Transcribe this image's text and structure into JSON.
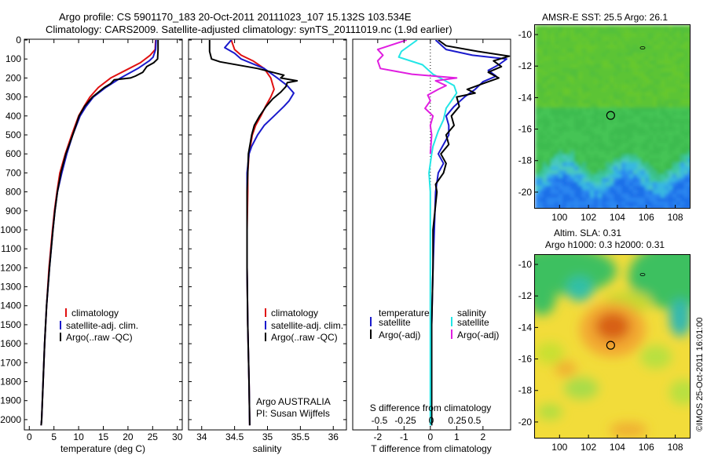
{
  "header": {
    "line1": "Argo profile: CS 5901170_183 20-Oct-2011 20111023_107 15.132S 103.534E",
    "line2": "Climatology: CARS2009. Satellite-adjusted climatology: synTS_20111019.nc (1.9d earlier)"
  },
  "colors": {
    "climatology": "#e01010",
    "satellite": "#1a1acc",
    "argo": "#000000",
    "satellite_salinity": "#22e6e6",
    "argo_salinity": "#e01ee0"
  },
  "chart_data": [
    {
      "type": "line",
      "panel": "temperature",
      "xlabel": "temperature (deg C)",
      "ylabel": "",
      "xlim": [
        -1,
        31
      ],
      "ylim": [
        2050,
        0
      ],
      "xticks": [
        0,
        5,
        10,
        15,
        20,
        25,
        30
      ],
      "yticks": [
        0,
        100,
        200,
        300,
        400,
        500,
        600,
        700,
        800,
        900,
        1000,
        1100,
        1200,
        1300,
        1400,
        1500,
        1600,
        1700,
        1800,
        1900,
        2000
      ],
      "legend": [
        "climatology",
        "satellite-adj. clim.",
        "Argo(..raw -QC)"
      ],
      "series": [
        {
          "name": "climatology",
          "color": "climatology",
          "y": [
            0,
            50,
            80,
            120,
            160,
            200,
            250,
            300,
            350,
            400,
            500,
            600,
            700,
            800,
            900,
            1000,
            1200,
            1400,
            1600,
            1800,
            2000,
            2030
          ],
          "x": [
            25.6,
            25.5,
            24.5,
            22.5,
            19.5,
            16.5,
            14.0,
            12.3,
            11.1,
            10.0,
            8.6,
            7.3,
            6.2,
            5.6,
            5.1,
            4.7,
            4.0,
            3.5,
            3.1,
            2.8,
            2.5,
            2.4
          ]
        },
        {
          "name": "satellite-adj. clim.",
          "color": "satellite",
          "y": [
            0,
            50,
            90,
            110,
            150,
            200,
            250,
            300,
            350,
            400,
            500,
            600,
            700,
            800,
            900,
            1000,
            1200,
            1400,
            1600,
            1800,
            2000,
            2030
          ],
          "x": [
            25.7,
            25.6,
            25.1,
            24.3,
            22.0,
            18.5,
            15.5,
            13.0,
            11.5,
            10.3,
            8.8,
            7.6,
            6.6,
            5.7,
            5.2,
            4.8,
            4.1,
            3.5,
            3.1,
            2.8,
            2.5,
            2.4
          ]
        },
        {
          "name": "Argo(..raw -QC)",
          "color": "argo",
          "y": [
            0,
            50,
            100,
            120,
            140,
            170,
            190,
            200,
            210,
            230,
            250,
            300,
            350,
            400,
            500,
            600,
            700,
            800,
            900,
            1000,
            1200,
            1400,
            1600,
            1800,
            2000,
            2030
          ],
          "x": [
            26.1,
            26.1,
            26.0,
            25.2,
            23.8,
            23.0,
            21.5,
            20.5,
            17.2,
            16.5,
            15.2,
            12.8,
            11.2,
            10.1,
            8.8,
            7.4,
            6.4,
            5.7,
            5.2,
            4.8,
            4.1,
            3.5,
            3.1,
            2.8,
            2.5,
            2.4
          ]
        }
      ]
    },
    {
      "type": "line",
      "panel": "salinity",
      "xlabel": "salinity",
      "ylabel": "",
      "xlim": [
        33.8,
        36.2
      ],
      "ylim": [
        2050,
        0
      ],
      "xticks": [
        34,
        34.5,
        35,
        35.5,
        36
      ],
      "yticks": [
        0,
        100,
        200,
        300,
        400,
        500,
        600,
        700,
        800,
        900,
        1000,
        1100,
        1200,
        1300,
        1400,
        1500,
        1600,
        1700,
        1800,
        1900,
        2000
      ],
      "legend": [
        "climatology",
        "satellite-adj. clim.",
        "Argo(..raw -QC)"
      ],
      "annotation": [
        "Argo AUSTRALIA",
        "PI: Susan Wijffels"
      ],
      "series": [
        {
          "name": "climatology",
          "color": "climatology",
          "y": [
            0,
            50,
            80,
            110,
            150,
            200,
            260,
            300,
            350,
            400,
            450,
            500,
            560,
            600,
            700,
            800,
            1000,
            1200,
            1500,
            1800,
            2030
          ],
          "x": [
            34.45,
            34.5,
            34.6,
            34.78,
            34.95,
            35.05,
            35.1,
            35.05,
            34.97,
            34.9,
            34.82,
            34.77,
            34.74,
            34.72,
            34.7,
            34.7,
            34.69,
            34.69,
            34.7,
            34.72,
            34.73
          ]
        },
        {
          "name": "satellite-adj. clim.",
          "color": "satellite",
          "y": [
            0,
            40,
            70,
            100,
            150,
            200,
            240,
            280,
            320,
            350,
            400,
            450,
            500,
            560,
            600,
            700,
            800,
            1000,
            1200,
            1500,
            1800,
            2030
          ],
          "x": [
            34.45,
            34.35,
            34.5,
            34.6,
            34.95,
            35.15,
            35.3,
            35.4,
            35.33,
            35.25,
            35.1,
            34.95,
            34.85,
            34.76,
            34.72,
            34.69,
            34.69,
            34.69,
            34.69,
            34.7,
            34.72,
            34.73
          ]
        },
        {
          "name": "Argo(..raw -QC)",
          "color": "argo",
          "y": [
            0,
            60,
            100,
            115,
            150,
            185,
            200,
            215,
            225,
            245,
            275,
            310,
            350,
            400,
            450,
            500,
            560,
            600,
            700,
            800,
            1000,
            1200,
            1500,
            1800,
            2030
          ],
          "x": [
            34.12,
            34.12,
            34.15,
            34.28,
            34.85,
            35.25,
            35.2,
            35.45,
            35.3,
            35.28,
            35.2,
            35.08,
            34.98,
            34.88,
            34.8,
            34.76,
            34.73,
            34.71,
            34.7,
            34.69,
            34.69,
            34.69,
            34.7,
            34.72,
            34.73
          ]
        }
      ]
    },
    {
      "type": "line",
      "panel": "difference",
      "xlabel": "T difference from climatology",
      "xlabel_top": "S difference from climatology",
      "ylabel": "",
      "xlim": [
        -2.95,
        3.05
      ],
      "ylim": [
        2050,
        0
      ],
      "xticks": [
        -2,
        -1,
        0,
        1,
        2
      ],
      "xticks_s": [
        "-0.5",
        "-0.25",
        "0",
        "0.25",
        "0.5"
      ],
      "yticks": [
        0,
        100,
        200,
        300,
        400,
        500,
        600,
        700,
        800,
        900,
        1000,
        1100,
        1200,
        1300,
        1400,
        1500,
        1600,
        1700,
        1800,
        1900,
        2000
      ],
      "legend_t": {
        "title": "temperature",
        "items": [
          "satellite",
          "Argo(-adj)"
        ]
      },
      "legend_s": {
        "title": "salinity",
        "items": [
          "satellite",
          "Argo(-adj)"
        ]
      },
      "series": [
        {
          "name": "temperature satellite",
          "color": "satellite",
          "y": [
            0,
            50,
            80,
            100,
            130,
            160,
            190,
            220,
            260,
            300,
            350,
            400,
            450,
            500,
            550,
            600,
            650,
            700,
            800,
            1000,
            1200,
            1500,
            1800,
            2030
          ],
          "x": [
            0.2,
            0.6,
            1.6,
            2.9,
            2.6,
            2.2,
            2.5,
            2.0,
            1.7,
            1.3,
            0.9,
            0.6,
            0.7,
            0.7,
            0.5,
            0.3,
            0.5,
            0.3,
            0.2,
            0.15,
            0.1,
            0.05,
            0.05,
            0.05
          ]
        },
        {
          "name": "temperature Argo(-adj)",
          "color": "argo",
          "y": [
            0,
            30,
            60,
            85,
            110,
            140,
            170,
            200,
            230,
            260,
            280,
            300,
            350,
            400,
            450,
            500,
            550,
            600,
            650,
            700,
            760,
            800,
            1000,
            1200,
            1500,
            1800,
            2030
          ],
          "x": [
            0.3,
            0.6,
            1.8,
            3.0,
            2.4,
            2.7,
            2.2,
            2.6,
            2.0,
            1.4,
            1.7,
            1.0,
            1.1,
            0.8,
            0.9,
            0.6,
            0.7,
            0.4,
            0.6,
            0.5,
            0.2,
            0.25,
            0.1,
            0.1,
            0.05,
            0.05,
            0.05
          ]
        },
        {
          "name": "salinity satellite",
          "color": "satellite_salinity",
          "y": [
            0,
            60,
            90,
            130,
            180,
            210,
            240,
            280,
            320,
            360,
            420,
            480,
            520,
            560,
            600,
            700,
            800,
            900,
            1000,
            1200,
            1500,
            1800,
            2030
          ],
          "x": [
            -0.5,
            -1.1,
            -1.2,
            -0.3,
            0.1,
            0.5,
            0.9,
            1.0,
            0.8,
            0.6,
            0.5,
            0.3,
            0.2,
            0.1,
            0.05,
            -0.05,
            0.0,
            0.0,
            0.0,
            0.0,
            0.0,
            0.0,
            0.0
          ]
        },
        {
          "name": "salinity Argo(-adj)",
          "color": "argo_salinity",
          "y": [
            0,
            50,
            80,
            110,
            150,
            180,
            200,
            215,
            240,
            260,
            290,
            320,
            360,
            400,
            450,
            500,
            600
          ],
          "x": [
            -0.9,
            -2.0,
            -1.8,
            -2.0,
            -1.9,
            -0.7,
            1.0,
            0.2,
            0.6,
            0.3,
            -0.1,
            0.0,
            -0.2,
            0.1,
            0.0,
            0.05,
            0.0
          ]
        }
      ]
    },
    {
      "type": "heatmap",
      "panel": "sst_map",
      "title": "AMSR-E SST: 25.5 Argo: 26.1",
      "xlim": [
        98.3,
        109
      ],
      "ylim": [
        -21,
        -9.4
      ],
      "xticks": [
        100,
        102,
        104,
        106,
        108
      ],
      "yticks": [
        -10,
        -12,
        -14,
        -16,
        -18,
        -20
      ],
      "float_position": {
        "lon": 103.534,
        "lat": -15.132
      }
    },
    {
      "type": "heatmap",
      "panel": "sla_map",
      "title_lines": [
        "Altim. SLA: 0.31",
        "Argo h1000: 0.3 h2000: 0.31"
      ],
      "xlim": [
        98.3,
        109
      ],
      "ylim": [
        -21,
        -9.4
      ],
      "xticks": [
        100,
        102,
        104,
        106,
        108
      ],
      "yticks": [
        -10,
        -12,
        -14,
        -16,
        -18,
        -20
      ],
      "float_position": {
        "lon": 103.534,
        "lat": -15.132
      },
      "credit": "©IMOS 25-Oct-2011 16:01:00"
    }
  ]
}
